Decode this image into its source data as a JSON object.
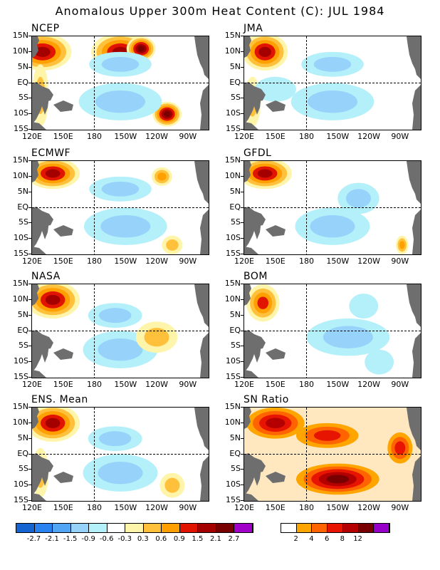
{
  "title": "Anomalous Upper 300m Heat Content (C): JUL 1984",
  "colors": {
    "land": "#6e6e6e",
    "anomaly_scale": [
      "#1464d2",
      "#2882f0",
      "#50a5f5",
      "#96d2fa",
      "#b4f0fa",
      "#ffffff",
      "#fff5aa",
      "#ffc03c",
      "#ffa000",
      "#e11400",
      "#a50000",
      "#780000",
      "#a000c8"
    ],
    "sn_scale": [
      "#ffffff",
      "#ffa500",
      "#ff6400",
      "#e61400",
      "#b40000",
      "#780000",
      "#9600c8"
    ]
  },
  "chart_data": {
    "type": "heatmap",
    "x_ticks": [
      "120E",
      "150E",
      "180",
      "150W",
      "120W",
      "90W"
    ],
    "y_ticks": [
      "15N",
      "10N",
      "5N",
      "EQ",
      "5S",
      "10S",
      "15S"
    ],
    "xlim": [
      "120E",
      "70W"
    ],
    "ylim": [
      "15S",
      "15N"
    ],
    "anomaly_colorbar": {
      "labels": [
        "-2.7",
        "-2.1",
        "-1.5",
        "-0.9",
        "-0.6",
        "-0.3",
        "0.3",
        "0.6",
        "0.9",
        "1.5",
        "2.1",
        "2.7"
      ]
    },
    "sn_colorbar": {
      "labels": [
        "2",
        "4",
        "6",
        "8",
        "12"
      ]
    },
    "panels": [
      {
        "name": "NCEP"
      },
      {
        "name": "JMA"
      },
      {
        "name": "ECMWF"
      },
      {
        "name": "GFDL"
      },
      {
        "name": "NASA"
      },
      {
        "name": "BOM"
      },
      {
        "name": "ENS. Mean"
      },
      {
        "name": "SN Ratio"
      }
    ]
  }
}
